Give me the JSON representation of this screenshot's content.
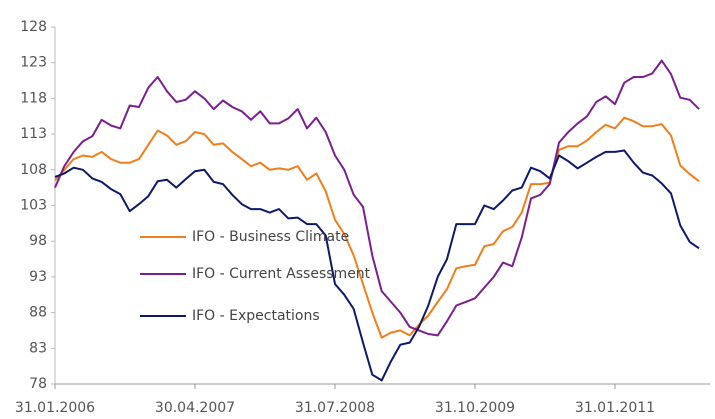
{
  "chart_data": {
    "type": "line",
    "categories": [
      "31.01.2006",
      null,
      null,
      null,
      null,
      null,
      null,
      null,
      null,
      null,
      null,
      null,
      null,
      null,
      null,
      "30.04.2007",
      null,
      null,
      null,
      null,
      null,
      null,
      null,
      null,
      null,
      null,
      null,
      null,
      null,
      null,
      "31.07.2008",
      null,
      null,
      null,
      null,
      null,
      null,
      null,
      null,
      null,
      null,
      null,
      null,
      null,
      null,
      "31.10.2009",
      null,
      null,
      null,
      null,
      null,
      null,
      null,
      null,
      null,
      null,
      null,
      null,
      null,
      null,
      "31.01.2011",
      null,
      null,
      null,
      null,
      null,
      null,
      null,
      null,
      null
    ],
    "series": [
      {
        "name": "IFO - Business Climate",
        "color": "#f07f1b",
        "values": [
          106.5,
          108,
          109.5,
          110,
          109.8,
          110.5,
          109.5,
          109,
          109,
          109.5,
          111.5,
          113.5,
          112.8,
          111.5,
          112,
          113.3,
          113,
          111.5,
          111.7,
          110.5,
          109.5,
          108.5,
          109,
          108,
          108.2,
          108,
          108.5,
          106.6,
          107.5,
          105,
          101,
          99,
          96,
          92,
          88,
          84.5,
          85.2,
          85.5,
          84.8,
          86.3,
          87.6,
          89.5,
          91.3,
          94.2,
          94.5,
          94.7,
          97.3,
          97.6,
          99.4,
          100,
          102,
          106,
          106,
          106.2,
          110.8,
          111.3,
          111.3,
          112.1,
          113.3,
          114.3,
          113.8,
          115.3,
          114.8,
          114.1,
          114.1,
          114.4,
          112.8,
          108.6,
          107.4,
          106.4
        ]
      },
      {
        "name": "IFO - Current Assessment",
        "color": "#7b1f8e",
        "values": [
          105.5,
          108.5,
          110.5,
          112,
          112.7,
          115,
          114.2,
          113.8,
          117,
          116.8,
          119.5,
          121,
          119,
          117.5,
          117.8,
          119,
          118,
          116.5,
          117.7,
          116.8,
          116.2,
          115,
          116.2,
          114.5,
          114.5,
          115.2,
          116.5,
          113.8,
          115.3,
          113.3,
          110,
          108,
          104.5,
          102.8,
          96,
          91,
          89.5,
          88,
          86,
          85.5,
          85,
          84.8,
          86.8,
          89,
          89.5,
          90,
          91.5,
          93,
          95,
          94.5,
          98.5,
          104,
          104.5,
          106,
          111.8,
          113.3,
          114.5,
          115.5,
          117.5,
          118.3,
          117.2,
          120.2,
          121,
          121,
          121.5,
          123.3,
          121.4,
          118.1,
          117.8,
          116.5
        ]
      },
      {
        "name": "IFO - Expectations",
        "color": "#0d1a6b",
        "values": [
          107,
          107.5,
          108.3,
          108,
          106.8,
          106.3,
          105.3,
          104.6,
          102.2,
          103.2,
          104.3,
          106.4,
          106.6,
          105.5,
          106.7,
          107.8,
          108,
          106.3,
          106,
          104.5,
          103.2,
          102.5,
          102.5,
          102,
          102.5,
          101.2,
          101.3,
          100.4,
          100.4,
          98.8,
          92,
          90.5,
          88.5,
          83.8,
          79.3,
          78.5,
          81.2,
          83.5,
          83.8,
          86,
          89,
          93,
          95.5,
          100.4,
          100.4,
          100.4,
          103,
          102.5,
          103.7,
          105.1,
          105.5,
          108.3,
          107.8,
          106.8,
          110,
          109.2,
          108.2,
          109,
          109.8,
          110.5,
          110.5,
          110.7,
          109,
          107.6,
          107.2,
          106.1,
          104.7,
          100.2,
          97.9,
          97
        ]
      }
    ],
    "ylim": [
      78,
      128
    ],
    "yticks": [
      78,
      83,
      88,
      93,
      98,
      103,
      108,
      113,
      118,
      123,
      128
    ],
    "legend": "left",
    "grid": false
  }
}
